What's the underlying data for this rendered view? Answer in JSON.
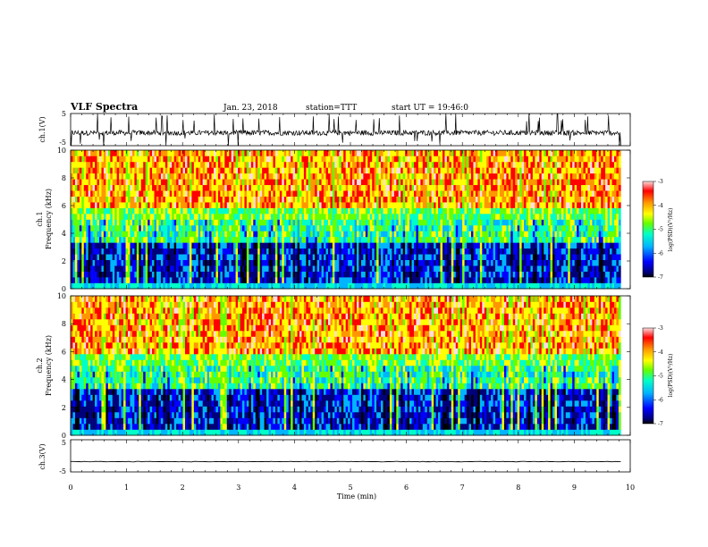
{
  "header": {
    "title": "VLF Spectra",
    "date": "Jan. 23, 2018",
    "station": "station=TTT",
    "start_ut": "start UT = 19:46:0"
  },
  "colors": {
    "trace": "#000000",
    "colormap": [
      "#000000",
      "#00007a",
      "#0000ff",
      "#00b4ff",
      "#00ffc8",
      "#64ff00",
      "#ffff00",
      "#ff9600",
      "#ff0000",
      "#ffdcdc"
    ]
  },
  "chart_data": [
    {
      "name": "ch1-waveform",
      "type": "line",
      "ylabel": "ch.1(V)",
      "ylim": [
        -5,
        5
      ],
      "yticks": [
        "5",
        "-5"
      ],
      "xlim": [
        0,
        10
      ],
      "description_level": "noisy trace near -1 V with frequent spikes to +5 and -5"
    },
    {
      "name": "ch1-spectrogram",
      "type": "heatmap",
      "ylabel": "ch.1\nFrequency (kHz)",
      "ylim": [
        0,
        10
      ],
      "yticks": [
        "0",
        "2",
        "4",
        "6",
        "8",
        "10"
      ],
      "xlim": [
        0,
        10
      ],
      "colorbar": {
        "label": "log(PSD)(V²/Hz)",
        "range": [
          -7,
          -3
        ],
        "ticks": [
          "-3",
          "-4",
          "-5",
          "-6",
          "-7"
        ]
      }
    },
    {
      "name": "ch2-spectrogram",
      "type": "heatmap",
      "ylabel": "ch.2\nFrequency (kHz)",
      "ylim": [
        0,
        10
      ],
      "yticks": [
        "0",
        "2",
        "4",
        "6",
        "8",
        "10"
      ],
      "xlim": [
        0,
        10
      ],
      "colorbar": {
        "label": "log(PSD)(V²/Hz)",
        "range": [
          -7,
          -3
        ],
        "ticks": [
          "-3",
          "-4",
          "-5",
          "-6",
          "-7"
        ]
      }
    },
    {
      "name": "ch3-waveform",
      "type": "line",
      "ylabel": "ch.3(V)",
      "ylim": [
        -5,
        5
      ],
      "yticks": [
        "5",
        "-5"
      ],
      "xlim": [
        0,
        10
      ],
      "level": -1.8
    }
  ],
  "xaxis": {
    "label": "Time (min)",
    "ticks": [
      "0",
      "1",
      "2",
      "3",
      "4",
      "5",
      "6",
      "7",
      "8",
      "9",
      "10"
    ],
    "data_end": 9.83
  },
  "ylabels": {
    "ch1": "ch.1(V)",
    "spec1_a": "ch.1",
    "spec1_b": "Frequency (kHz)",
    "spec2_a": "ch.2",
    "spec2_b": "Frequency (kHz)",
    "ch3": "ch.3(V)"
  },
  "colorbar_label": "log(PSD)(V²/Hz)"
}
